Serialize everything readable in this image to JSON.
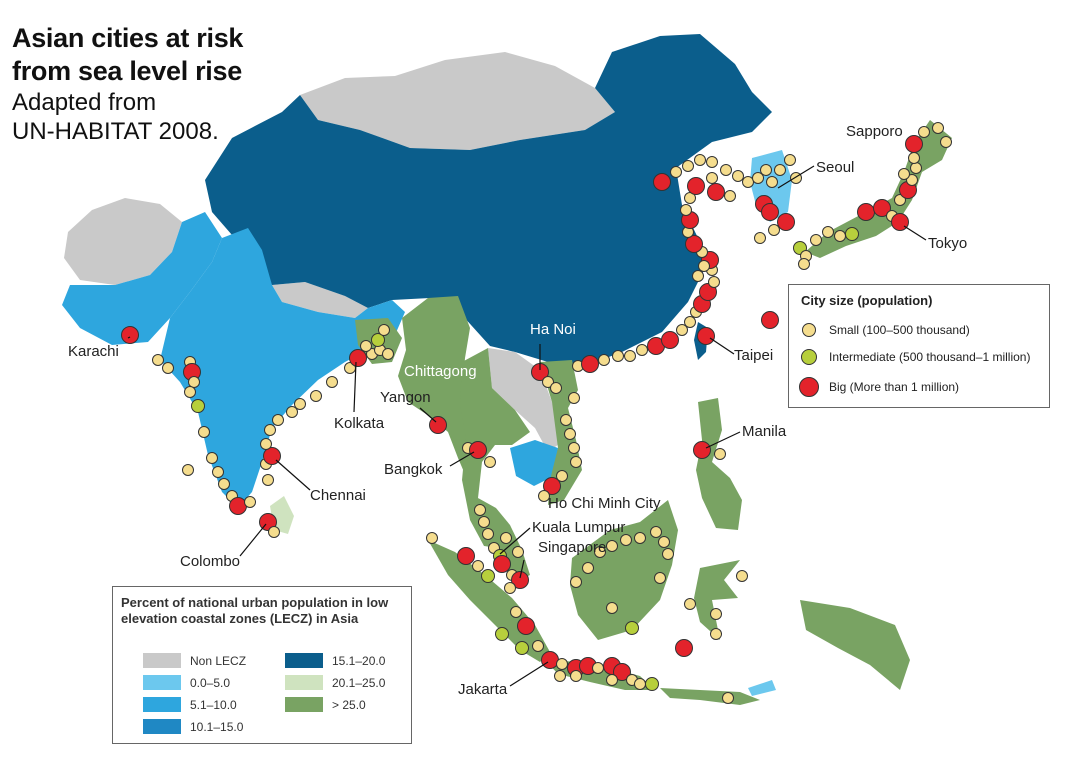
{
  "title": {
    "line1": "Asian cities at risk",
    "line2": "from sea level rise",
    "line3": "Adapted from",
    "line4": "UN-HABITAT 2008."
  },
  "colors": {
    "ocean": "#ffffff",
    "non_lecz": "#c9c9c9",
    "c0_5": "#6cc8ee",
    "c5_10": "#2ea6de",
    "c10_15": "#1f88c4",
    "c15_20": "#0b5e8c",
    "c20_25": "#cfe3bf",
    "c25_plus": "#79a363",
    "small_city": "#f5dd8e",
    "intermediate_city": "#b7cf3c",
    "big_city": "#e3232b"
  },
  "cities": {
    "sapporo": "Sapporo",
    "seoul": "Seoul",
    "tokyo": "Tokyo",
    "karachi": "Karachi",
    "ha_noi": "Ha Noi",
    "chittagong": "Chittagong",
    "taipei": "Taipei",
    "yangon": "Yangon",
    "kolkata": "Kolkata",
    "manila": "Manila",
    "bangkok": "Bangkok",
    "chennai": "Chennai",
    "ho_chi_minh": "Ho Chi Minh City",
    "kuala_lumpur": "Kuala Lumpur",
    "singapore": "Singapore",
    "colombo": "Colombo",
    "jakarta": "Jakarta"
  },
  "size_legend": {
    "title": "City size (population)",
    "items": [
      {
        "label": "Small (100–500 thousand)",
        "color": "#f5dd8e",
        "size": 12
      },
      {
        "label": "Intermediate (500 thousand–1 million)",
        "color": "#b7cf3c",
        "size": 14
      },
      {
        "label": "Big (More than 1 million)",
        "color": "#e3232b",
        "size": 18
      }
    ]
  },
  "lecz_legend": {
    "title": "Percent of national urban population in low elevation coastal zones (LECZ) in Asia",
    "items": [
      {
        "label": "Non LECZ",
        "color": "#c9c9c9"
      },
      {
        "label": "0.0–5.0",
        "color": "#6cc8ee"
      },
      {
        "label": "5.1–10.0",
        "color": "#2ea6de"
      },
      {
        "label": "10.1–15.0",
        "color": "#1f88c4"
      },
      {
        "label": "15.1–20.0",
        "color": "#0b5e8c"
      },
      {
        "label": "20.1–25.0",
        "color": "#cfe3bf"
      },
      {
        "label": "> 25.0",
        "color": "#79a363"
      }
    ]
  }
}
